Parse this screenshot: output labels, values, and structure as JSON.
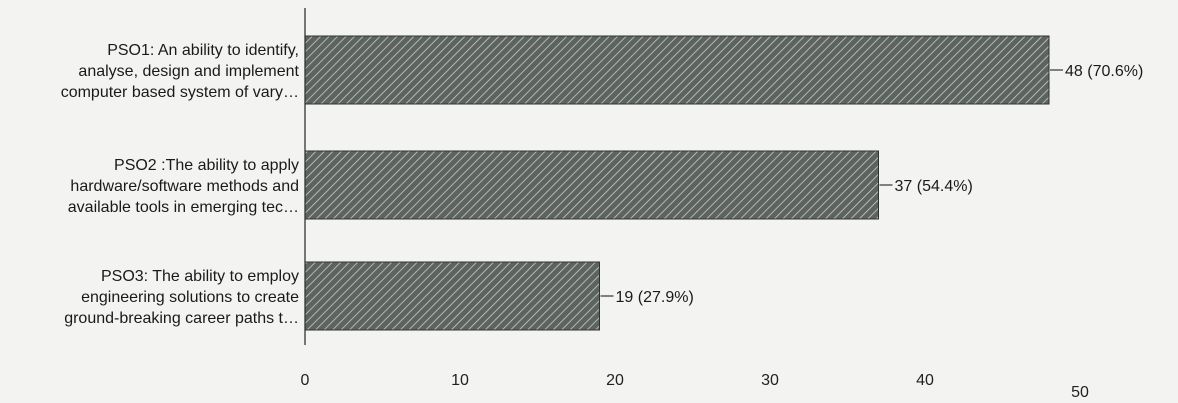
{
  "chart_data": {
    "type": "bar",
    "orientation": "horizontal",
    "title": "",
    "xlabel": "",
    "ylabel": "",
    "categories": [
      [
        "PSO1: An ability to identify,",
        "analyse, design and implement",
        "computer based system of vary…"
      ],
      [
        "PSO2 :The ability to apply",
        "hardware/software methods and",
        "available tools in emerging tec…"
      ],
      [
        "PSO3: The ability to employ",
        "engineering solutions to create",
        "ground-breaking career paths t…"
      ]
    ],
    "values": [
      48,
      37,
      19
    ],
    "value_labels": [
      "48 (70.6%)",
      "37 (54.4%)",
      "19 (27.9%)"
    ],
    "xlim": [
      0,
      50
    ],
    "xticks": [
      0,
      10,
      20,
      30,
      40,
      50
    ],
    "grid": false,
    "legend": "none",
    "colors": {
      "bar_fill": "#5d6460",
      "bar_hatch": "#c9ccc6",
      "bar_stroke": "#2f3330",
      "axis": "#333333"
    }
  }
}
